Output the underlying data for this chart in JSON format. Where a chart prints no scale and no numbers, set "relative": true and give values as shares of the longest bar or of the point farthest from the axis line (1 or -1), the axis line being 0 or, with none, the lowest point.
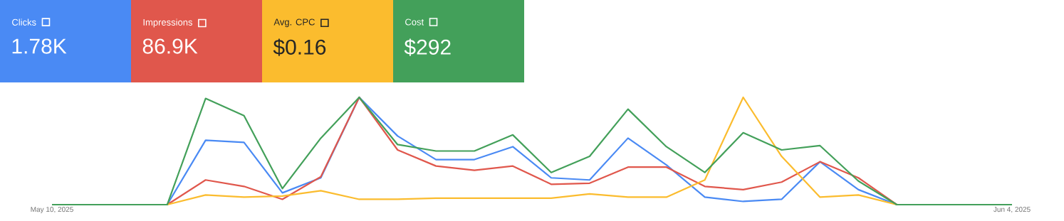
{
  "chart_data": {
    "type": "line",
    "relative": true,
    "legend": "top left",
    "marker": "none",
    "line_style": "solid",
    "x": [
      "2025-05-10",
      "2025-05-11",
      "2025-05-12",
      "2025-05-13",
      "2025-05-14",
      "2025-05-15",
      "2025-05-16",
      "2025-05-17",
      "2025-05-18",
      "2025-05-19",
      "2025-05-20",
      "2025-05-21",
      "2025-05-22",
      "2025-05-23",
      "2025-05-24",
      "2025-05-25",
      "2025-05-26",
      "2025-05-27",
      "2025-05-28",
      "2025-05-29",
      "2025-05-30",
      "2025-05-31",
      "2025-06-01",
      "2025-06-02",
      "2025-06-03",
      "2025-06-04"
    ],
    "xlim": [
      "2025-05-10",
      "2025-06-04"
    ],
    "xticks": [
      {
        "value": "2025-05-10",
        "label": "May 10, 2025"
      },
      {
        "value": "2025-06-04",
        "label": "Jun 4, 2025"
      }
    ],
    "annotations": [
      "1.78K",
      "86.9K",
      "$0.16",
      "$292"
    ],
    "series": [
      {
        "name": "Clicks",
        "color": "#4a8af4",
        "values": [
          null,
          null,
          0,
          0,
          0.6,
          0.58,
          0.11,
          0.25,
          1,
          0.64,
          0.42,
          0.42,
          0.54,
          0.25,
          0.23,
          0.62,
          0.37,
          0.07,
          0.03,
          0.05,
          0.4,
          0.14,
          0,
          0,
          null,
          null
        ]
      },
      {
        "name": "Impressions",
        "color": "#e0574c",
        "values": [
          null,
          null,
          0,
          0,
          0.23,
          0.17,
          0.05,
          0.26,
          1,
          0.51,
          0.36,
          0.32,
          0.36,
          0.19,
          0.2,
          0.35,
          0.35,
          0.17,
          0.14,
          0.21,
          0.4,
          0.25,
          0,
          0,
          null,
          null
        ]
      },
      {
        "name": "Avg. CPC",
        "color": "#fbbc2e",
        "values": [
          null,
          null,
          0,
          0,
          0.09,
          0.07,
          0.08,
          0.13,
          0.05,
          0.05,
          0.06,
          0.06,
          0.06,
          0.06,
          0.1,
          0.07,
          0.07,
          0.23,
          1,
          0.45,
          0.07,
          0.09,
          0,
          0,
          null,
          null
        ]
      },
      {
        "name": "Cost",
        "color": "#43a05a",
        "values": [
          0,
          0,
          0,
          0,
          0.99,
          0.83,
          0.15,
          0.62,
          1,
          0.56,
          0.5,
          0.5,
          0.65,
          0.3,
          0.45,
          0.89,
          0.54,
          0.3,
          0.67,
          0.51,
          0.55,
          0.22,
          0,
          0,
          0,
          0
        ]
      }
    ]
  }
}
